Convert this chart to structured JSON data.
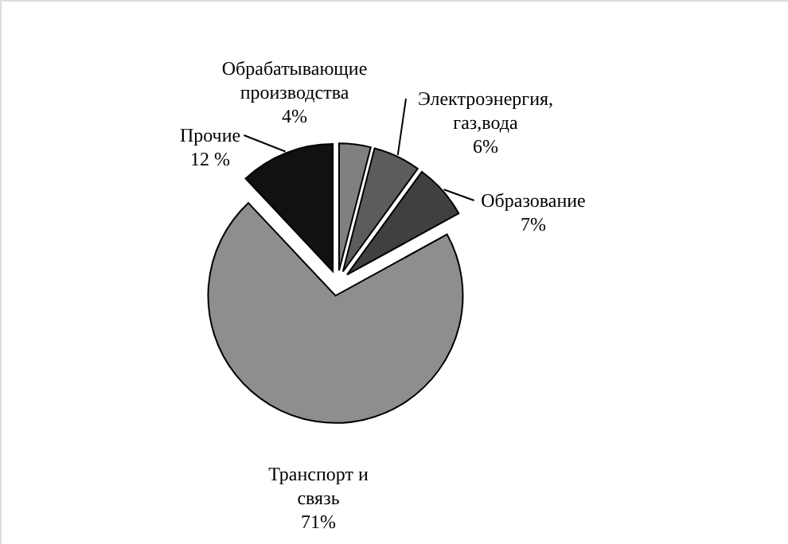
{
  "chart_data": {
    "type": "pie",
    "categories": [
      "Обрабатывающие производства",
      "Электроэнергия, газ,вода",
      "Образование",
      "Транспорт и связь",
      "Прочие"
    ],
    "values": [
      4,
      6,
      7,
      71,
      12
    ],
    "colors": [
      "#808080",
      "#5c5c5c",
      "#404040",
      "#8e8e8e",
      "#111111"
    ],
    "value_labels": [
      "4%",
      "6%",
      "7%",
      "71%",
      "12 %"
    ]
  }
}
